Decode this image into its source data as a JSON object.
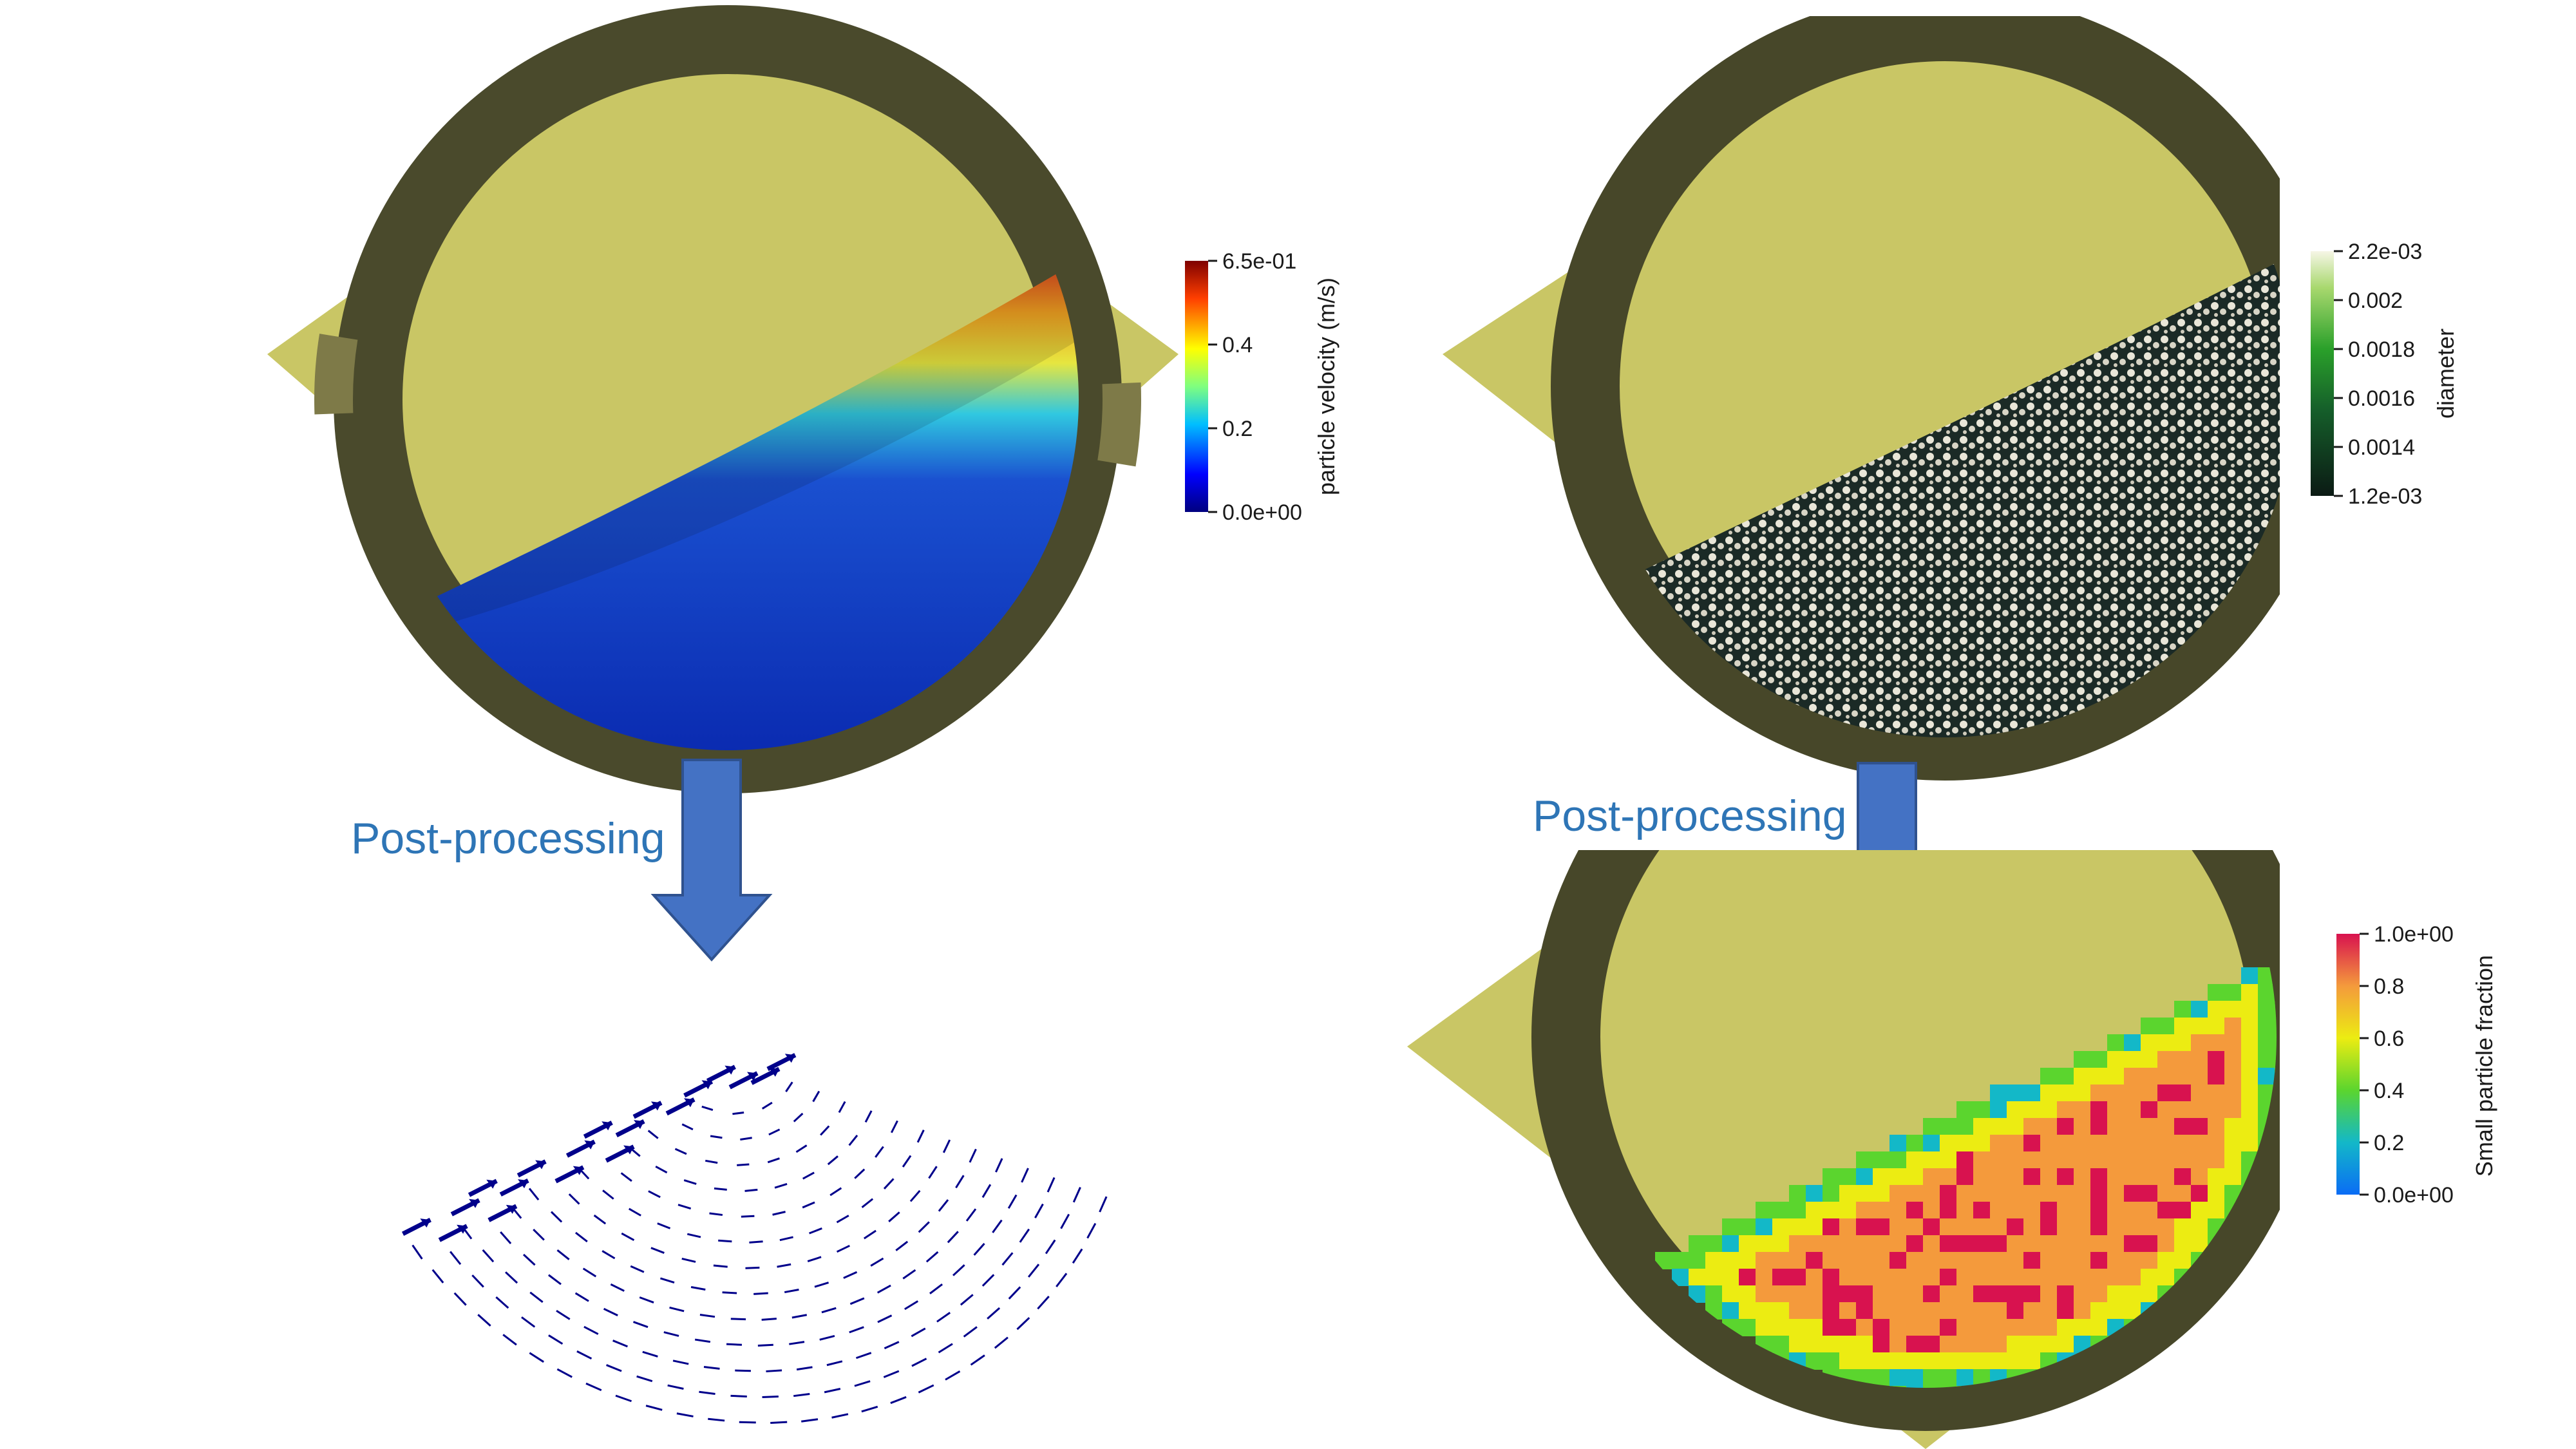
{
  "annotations": {
    "left_label": "Post-processing",
    "right_label": "Post-processing"
  },
  "colors": {
    "drum_face": "#c9c665",
    "drum_ring_light": "#8a8650",
    "drum_ring_dark": "#3d3d24",
    "arrow_fill": "#4472c4",
    "arrow_stroke": "#2f528f",
    "vector_color": "#00008b",
    "label_color": "#2e75b6"
  },
  "panels": {
    "velocity": {
      "colorbar": {
        "title": "particle velocity (m/s)",
        "ticks": [
          "6.5e-01",
          "0.4",
          "0.2",
          "0.0e+00"
        ],
        "range": [
          0.0,
          0.65
        ],
        "colormap": "jet"
      }
    },
    "diameter": {
      "colorbar": {
        "title": "diameter",
        "ticks": [
          "2.2e-03",
          "0.002",
          "0.0018",
          "0.0016",
          "0.0014",
          "1.2e-03"
        ],
        "range": [
          0.0012,
          0.0022
        ],
        "colormap": "white-green-black"
      }
    },
    "fraction": {
      "colorbar": {
        "title": "Small particle fraction",
        "ticks": [
          "1.0e+00",
          "0.8",
          "0.6",
          "0.4",
          "0.2",
          "0.0e+00"
        ],
        "range": [
          0.0,
          1.0
        ],
        "colormap": "spectral"
      }
    },
    "vectors": {
      "description_visible": false
    }
  }
}
